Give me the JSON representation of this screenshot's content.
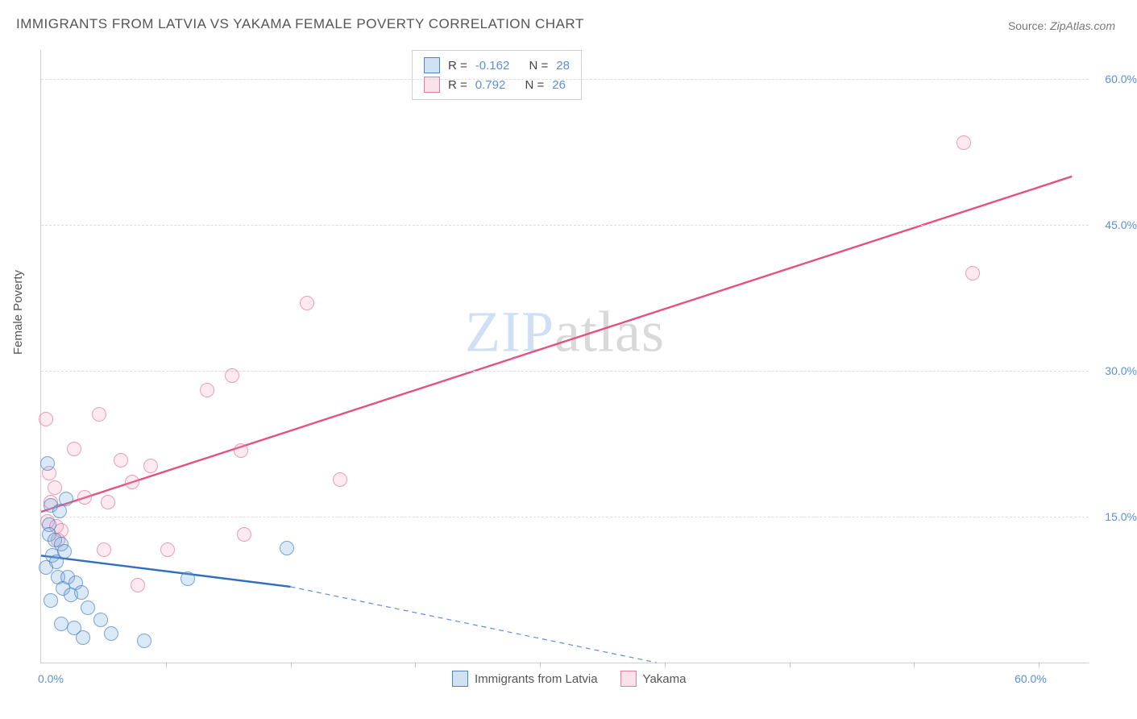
{
  "title": "IMMIGRANTS FROM LATVIA VS YAKAMA FEMALE POVERTY CORRELATION CHART",
  "source_label": "Source:",
  "source_value": "ZipAtlas.com",
  "ylabel": "Female Poverty",
  "watermark_a": "ZIP",
  "watermark_b": "atlas",
  "chart": {
    "type": "scatter",
    "xlim": [
      0,
      63
    ],
    "ylim": [
      0,
      63
    ],
    "x_ticks_minor": [
      7.5,
      15,
      22.5,
      30,
      37.5,
      45,
      52.5,
      60
    ],
    "y_gridlines": [
      15,
      30,
      45,
      60
    ],
    "y_tick_labels": {
      "15": "15.0%",
      "30": "30.0%",
      "45": "45.0%",
      "60": "60.0%"
    },
    "x_tick_labels": {
      "0": "0.0%",
      "60": "60.0%"
    },
    "grid_color": "#dddddd",
    "axis_color": "#d0d0d0",
    "background_color": "#ffffff",
    "tick_label_color": "#5b8fd6",
    "label_fontsize": 14
  },
  "series": {
    "latvia": {
      "label": "Immigrants from Latvia",
      "color_fill": "rgba(120,170,220,0.35)",
      "color_stroke": "#4a86c6",
      "marker_size": 16,
      "R": "-0.162",
      "N": "28",
      "trend": {
        "x1": 0,
        "y1": 11,
        "x2": 15,
        "y2": 7.8,
        "color": "#2e6fbf",
        "width": 2.4
      },
      "trend_dash": {
        "x1": 15,
        "y1": 7.8,
        "x2": 37,
        "y2": 0,
        "color": "#5b8fd6",
        "width": 1.2,
        "dash": "6 5"
      },
      "points": [
        [
          0.4,
          20.5
        ],
        [
          0.6,
          16.2
        ],
        [
          0.5,
          14.2
        ],
        [
          0.5,
          13.2
        ],
        [
          0.8,
          12.6
        ],
        [
          1.2,
          12.2
        ],
        [
          0.7,
          11.0
        ],
        [
          0.9,
          10.4
        ],
        [
          1.1,
          15.6
        ],
        [
          1.4,
          11.4
        ],
        [
          0.3,
          9.8
        ],
        [
          1.0,
          8.8
        ],
        [
          1.6,
          8.8
        ],
        [
          2.1,
          8.2
        ],
        [
          1.3,
          7.6
        ],
        [
          1.8,
          7.0
        ],
        [
          2.4,
          7.2
        ],
        [
          0.6,
          6.4
        ],
        [
          2.8,
          5.6
        ],
        [
          3.6,
          4.4
        ],
        [
          1.2,
          4.0
        ],
        [
          2.0,
          3.6
        ],
        [
          4.2,
          3.0
        ],
        [
          2.5,
          2.6
        ],
        [
          6.2,
          2.2
        ],
        [
          8.8,
          8.6
        ],
        [
          14.8,
          11.8
        ],
        [
          1.5,
          16.8
        ]
      ]
    },
    "yakama": {
      "label": "Yakama",
      "color_fill": "rgba(240,160,185,0.30)",
      "color_stroke": "#e67ba0",
      "marker_size": 16,
      "R": "0.792",
      "N": "26",
      "trend": {
        "x1": 0,
        "y1": 15.5,
        "x2": 62,
        "y2": 50,
        "color": "#e5507f",
        "width": 2.4
      },
      "points": [
        [
          0.3,
          25.0
        ],
        [
          0.5,
          19.5
        ],
        [
          0.8,
          18.0
        ],
        [
          0.6,
          16.5
        ],
        [
          0.4,
          14.5
        ],
        [
          0.9,
          14.0
        ],
        [
          1.2,
          13.6
        ],
        [
          1.0,
          12.6
        ],
        [
          2.0,
          22.0
        ],
        [
          3.5,
          25.5
        ],
        [
          2.6,
          17.0
        ],
        [
          3.8,
          11.6
        ],
        [
          4.8,
          20.8
        ],
        [
          5.5,
          18.6
        ],
        [
          5.8,
          8.0
        ],
        [
          6.6,
          20.2
        ],
        [
          7.6,
          11.6
        ],
        [
          10.0,
          28.0
        ],
        [
          11.5,
          29.5
        ],
        [
          12.0,
          21.8
        ],
        [
          12.2,
          13.2
        ],
        [
          16.0,
          37.0
        ],
        [
          18.0,
          18.8
        ],
        [
          55.5,
          53.5
        ],
        [
          56.0,
          40.0
        ],
        [
          4.0,
          16.5
        ]
      ]
    }
  },
  "legend_top": {
    "r_prefix": "R =",
    "n_prefix": "N ="
  }
}
